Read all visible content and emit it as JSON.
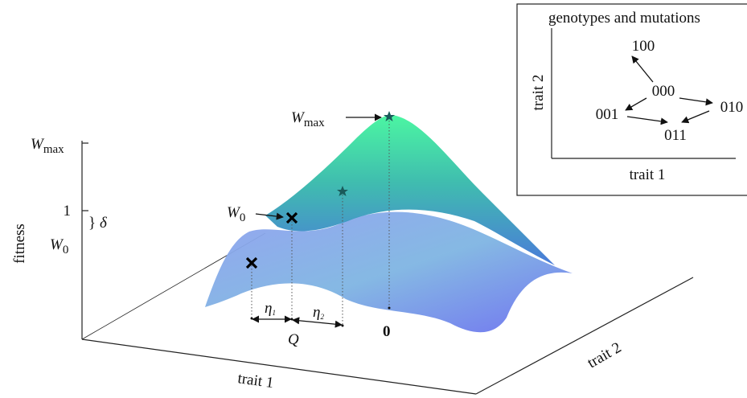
{
  "main": {
    "y_axis_label": "fitness",
    "w_max_tick": {
      "base": "W",
      "sub": "max"
    },
    "one_tick": "1",
    "delta": "δ",
    "w0_tick": {
      "base": "W",
      "sub": "0"
    },
    "w_max_callout": {
      "base": "W",
      "sub": "max"
    },
    "w0_callout": {
      "base": "W",
      "sub": "0"
    },
    "eta1": {
      "base": "η",
      "sub": "1"
    },
    "eta2": {
      "base": "η",
      "sub": "2"
    },
    "q_label": "Q",
    "origin_label": "0",
    "x_axis_label": "trait 1",
    "z_axis_label": "trait 2"
  },
  "inset": {
    "title": "genotypes and mutations",
    "x_axis_label": "trait 1",
    "y_axis_label": "trait 2",
    "nodes": [
      "100",
      "000",
      "001",
      "010",
      "011"
    ]
  }
}
